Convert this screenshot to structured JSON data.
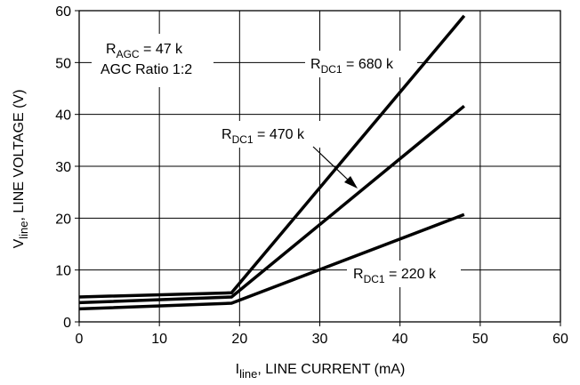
{
  "chart_data": {
    "type": "line",
    "title": "",
    "xlabel": {
      "main": "I",
      "sub": "line",
      "rest": ", LINE CURRENT (mA)"
    },
    "ylabel": {
      "main": "V",
      "sub": "line",
      "rest": ", LINE VOLTAGE (V)"
    },
    "xlim": [
      0,
      60
    ],
    "ylim": [
      0,
      60
    ],
    "xticks": [
      0,
      10,
      20,
      30,
      40,
      50,
      60
    ],
    "yticks": [
      0,
      10,
      20,
      30,
      40,
      50,
      60
    ],
    "grid": true,
    "series": [
      {
        "name": "RDC1 = 680 k",
        "x": [
          0,
          19,
          48
        ],
        "y": [
          4.8,
          5.6,
          59.0
        ]
      },
      {
        "name": "RDC1 = 470 k",
        "x": [
          0,
          19,
          48
        ],
        "y": [
          3.7,
          4.8,
          41.6
        ]
      },
      {
        "name": "RDC1 = 220 k",
        "x": [
          0,
          19,
          48
        ],
        "y": [
          2.5,
          3.6,
          20.7
        ]
      }
    ],
    "annotations": {
      "ragc": {
        "main": "R",
        "sub": "AGC",
        "rest": " = 47 k"
      },
      "agc_ratio": "AGC Ratio 1:2",
      "r680": {
        "main": "R",
        "sub": "DC1",
        "rest": " = 680 k"
      },
      "r470": {
        "main": "R",
        "sub": "DC1",
        "rest": " = 470 k"
      },
      "r220": {
        "main": "R",
        "sub": "DC1",
        "rest": " = 220 k"
      }
    }
  }
}
